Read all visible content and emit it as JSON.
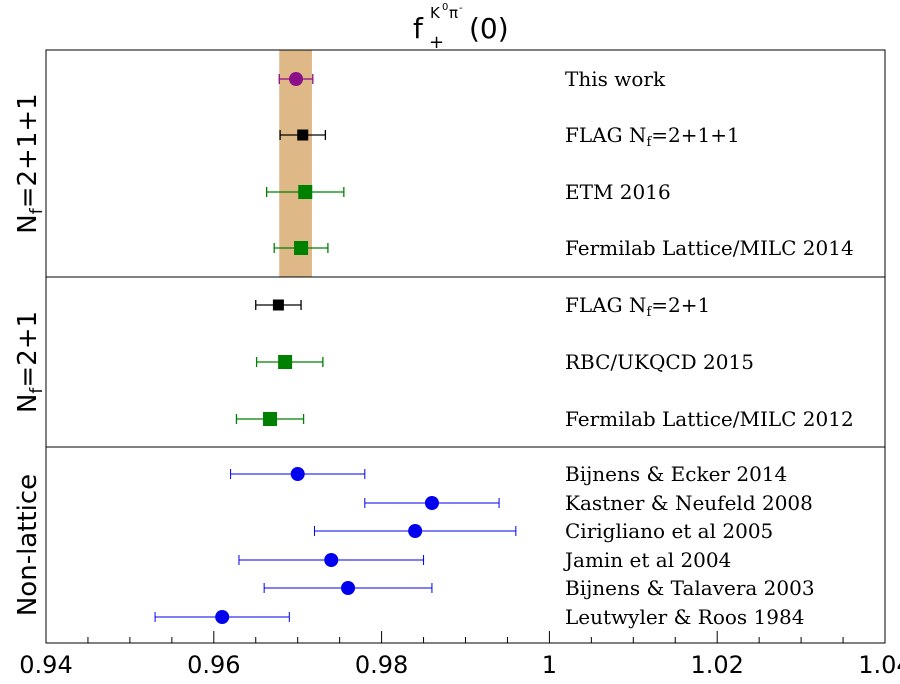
{
  "chart_data": {
    "type": "scatter",
    "title": {
      "base": "f",
      "subscript": "+",
      "superscript_K": "K",
      "superscript_K_sup": "0",
      "superscript_pi": "π",
      "superscript_pi_sup": "-",
      "argument": "(0)"
    },
    "xlim": [
      0.94,
      1.04
    ],
    "x_ticks": [
      {
        "value": 0.94,
        "label": "0.94"
      },
      {
        "value": 0.96,
        "label": "0.96"
      },
      {
        "value": 0.98,
        "label": "0.98"
      },
      {
        "value": 1.0,
        "label": "1"
      },
      {
        "value": 1.02,
        "label": "1.02"
      },
      {
        "value": 1.04,
        "label": "1.04"
      }
    ],
    "band": {
      "low": 0.9678,
      "high": 0.9717,
      "color": "#deb887"
    },
    "colors": {
      "purple": "#8b0f8b",
      "black": "#000000",
      "green": "#008000",
      "blue": "#0000ee",
      "band": "#deb887"
    },
    "groups": [
      {
        "label": {
          "base": "N",
          "sub": "f",
          "rest": "=2+1+1"
        },
        "points": [
          {
            "name": "This work",
            "value": 0.9698,
            "err_low": 0.002,
            "err_high": 0.002,
            "marker": "circle",
            "color": "#8b0f8b"
          },
          {
            "name_base": "FLAG N",
            "name_sub": "f",
            "name_rest": "=2+1+1",
            "value": 0.9706,
            "err_low": 0.0027,
            "err_high": 0.0027,
            "marker": "square-small",
            "color": "#000000"
          },
          {
            "name": "ETM 2016",
            "value": 0.9709,
            "err_low": 0.0046,
            "err_high": 0.0046,
            "marker": "square",
            "color": "#008000"
          },
          {
            "name": "Fermilab Lattice/MILC 2014",
            "value": 0.9704,
            "err_low": 0.0032,
            "err_high": 0.0032,
            "marker": "square",
            "color": "#008000"
          }
        ]
      },
      {
        "label": {
          "base": "N",
          "sub": "f",
          "rest": "=2+1"
        },
        "points": [
          {
            "name_base": "FLAG N",
            "name_sub": "f",
            "name_rest": "=2+1",
            "value": 0.9677,
            "err_low": 0.0027,
            "err_high": 0.0027,
            "marker": "square-small",
            "color": "#000000"
          },
          {
            "name": "RBC/UKQCD 2015",
            "value": 0.9685,
            "err_low": 0.0034,
            "err_high": 0.0045,
            "marker": "square",
            "color": "#008000"
          },
          {
            "name": "Fermilab Lattice/MILC 2012",
            "value": 0.9667,
            "err_low": 0.004,
            "err_high": 0.004,
            "marker": "square",
            "color": "#008000"
          }
        ]
      },
      {
        "label": {
          "base": "Non-lattice",
          "sub": "",
          "rest": ""
        },
        "points": [
          {
            "name": "Bijnens & Ecker 2014",
            "value": 0.97,
            "err_low": 0.008,
            "err_high": 0.008,
            "marker": "circle",
            "color": "#0000ee"
          },
          {
            "name": "Kastner & Neufeld 2008",
            "value": 0.986,
            "err_low": 0.008,
            "err_high": 0.008,
            "marker": "circle",
            "color": "#0000ee"
          },
          {
            "name": "Cirigliano et al 2005",
            "value": 0.984,
            "err_low": 0.012,
            "err_high": 0.012,
            "marker": "circle",
            "color": "#0000ee"
          },
          {
            "name": "Jamin et al 2004",
            "value": 0.974,
            "err_low": 0.011,
            "err_high": 0.011,
            "marker": "circle",
            "color": "#0000ee"
          },
          {
            "name": "Bijnens & Talavera 2003",
            "value": 0.976,
            "err_low": 0.01,
            "err_high": 0.01,
            "marker": "circle",
            "color": "#0000ee"
          },
          {
            "name": "Leutwyler & Roos 1984",
            "value": 0.961,
            "err_low": 0.008,
            "err_high": 0.008,
            "marker": "circle",
            "color": "#0000ee"
          }
        ]
      }
    ],
    "grid": false,
    "legend": "none"
  }
}
